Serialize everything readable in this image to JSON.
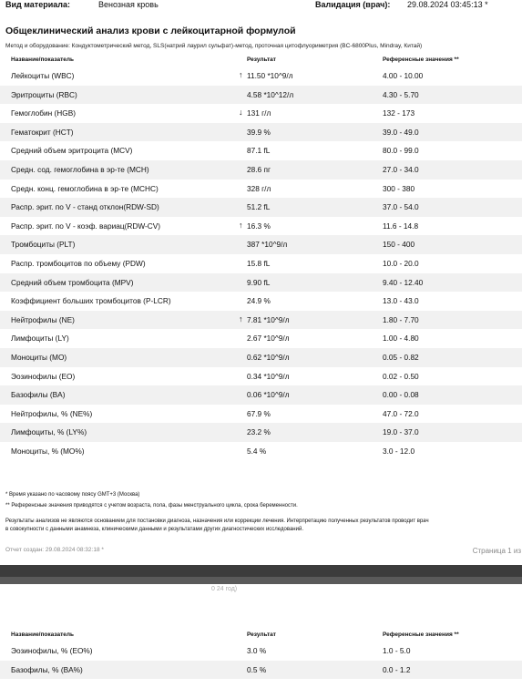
{
  "meta": {
    "material_label": "Вид материала:",
    "material_value": "Венозная кровь",
    "validation_label": "Валидация (врач):",
    "validation_value": "29.08.2024 03:45:13 *"
  },
  "report": {
    "title": "Общеклинический анализ крови с лейкоцитарной формулой",
    "method": "Метод и оборудование: Кондуктометрический метод, SLS(натрий лаурил сульфат)-метод, проточная цитофлуориметрия (BC-6800Plus, Mindray, Китай)"
  },
  "table": {
    "headers": {
      "name": "Название/показатель",
      "result": "Результат",
      "reference": "Референсные значения **"
    },
    "rows": [
      {
        "name": "Лейкоциты (WBC)",
        "flag": "↑",
        "result": "11.50 *10^9/л",
        "reference": "4.00 - 10.00"
      },
      {
        "name": "Эритроциты (RBC)",
        "flag": "",
        "result": "4.58 *10^12/л",
        "reference": "4.30 - 5.70"
      },
      {
        "name": "Гемоглобин (HGB)",
        "flag": "↓",
        "result": "131 г/л",
        "reference": "132 - 173"
      },
      {
        "name": "Гематокрит (HCT)",
        "flag": "",
        "result": "39.9 %",
        "reference": "39.0 - 49.0"
      },
      {
        "name": "Средний объем эритроцита (MCV)",
        "flag": "",
        "result": "87.1 fL",
        "reference": "80.0 - 99.0"
      },
      {
        "name": "Средн. сод. гемоглобина в эр-те (MCH)",
        "flag": "",
        "result": "28.6 пг",
        "reference": "27.0 - 34.0"
      },
      {
        "name": "Средн. конц. гемоглобина в эр-те (MCHC)",
        "flag": "",
        "result": "328 г/л",
        "reference": "300 - 380"
      },
      {
        "name": "Распр. эрит. по V - станд отклон(RDW-SD)",
        "flag": "",
        "result": "51.2 fL",
        "reference": "37.0 - 54.0"
      },
      {
        "name": "Распр. эрит. по V - коэф. вариац(RDW-CV)",
        "flag": "↑",
        "result": "16.3 %",
        "reference": "11.6 - 14.8"
      },
      {
        "name": "Тромбоциты (PLT)",
        "flag": "",
        "result": "387 *10^9/л",
        "reference": "150 - 400"
      },
      {
        "name": "Распр. тромбоцитов по объему (PDW)",
        "flag": "",
        "result": "15.8 fL",
        "reference": "10.0 - 20.0"
      },
      {
        "name": "Средний объем тромбоцита (MPV)",
        "flag": "",
        "result": "9.90 fL",
        "reference": "9.40 - 12.40"
      },
      {
        "name": "Коэффициент больших тромбоцитов (P-LCR)",
        "flag": "",
        "result": "24.9 %",
        "reference": "13.0 - 43.0"
      },
      {
        "name": "Нейтрофилы (NE)",
        "flag": "↑",
        "result": "7.81 *10^9/л",
        "reference": "1.80 - 7.70"
      },
      {
        "name": "Лимфоциты (LY)",
        "flag": "",
        "result": "2.67 *10^9/л",
        "reference": "1.00 - 4.80"
      },
      {
        "name": "Моноциты (MO)",
        "flag": "",
        "result": "0.62 *10^9/л",
        "reference": "0.05 - 0.82"
      },
      {
        "name": "Эозинофилы (EO)",
        "flag": "",
        "result": "0.34 *10^9/л",
        "reference": "0.02 - 0.50"
      },
      {
        "name": "Базофилы (BA)",
        "flag": "",
        "result": "0.06 *10^9/л",
        "reference": "0.00 - 0.08"
      },
      {
        "name": "Нейтрофилы, % (NE%)",
        "flag": "",
        "result": "67.9 %",
        "reference": "47.0 - 72.0"
      },
      {
        "name": "Лимфоциты, % (LY%)",
        "flag": "",
        "result": "23.2 %",
        "reference": "19.0 - 37.0"
      },
      {
        "name": "Моноциты, % (MO%)",
        "flag": "",
        "result": "5.4 %",
        "reference": "3.0 - 12.0"
      }
    ]
  },
  "notes": {
    "time_note": "* Время указано по часовому поясу GMT+3 (Москва)",
    "ref_note": "** Референсные значения приводятся с учетом возраста, пола, фазы менструального цикла, срока беременности.",
    "disclaimer_line1": "Результаты анализов не являются основанием для постановки диагноза, назначения или коррекции лечения. Интерпретацию полученных результатов проводит врач",
    "disclaimer_line2": "в совокупности с данными анамнеза, клиническими данными и результатами других диагностических исследований."
  },
  "footer": {
    "created": "Отчет создан: 29.08.2024 08:32:18 *",
    "page": "Страница 1 из"
  },
  "page2": {
    "cut_header": "0 24 год)",
    "headers": {
      "name": "Название/показатель",
      "result": "Результат",
      "reference": "Референсные значения **"
    },
    "rows": [
      {
        "name": "Эозинофилы, % (EO%)",
        "flag": "",
        "result": "3.0 %",
        "reference": "1.0 - 5.0"
      },
      {
        "name": "Базофилы, % (BA%)",
        "flag": "",
        "result": "0.5 %",
        "reference": "0.0 - 1.2"
      }
    ]
  }
}
